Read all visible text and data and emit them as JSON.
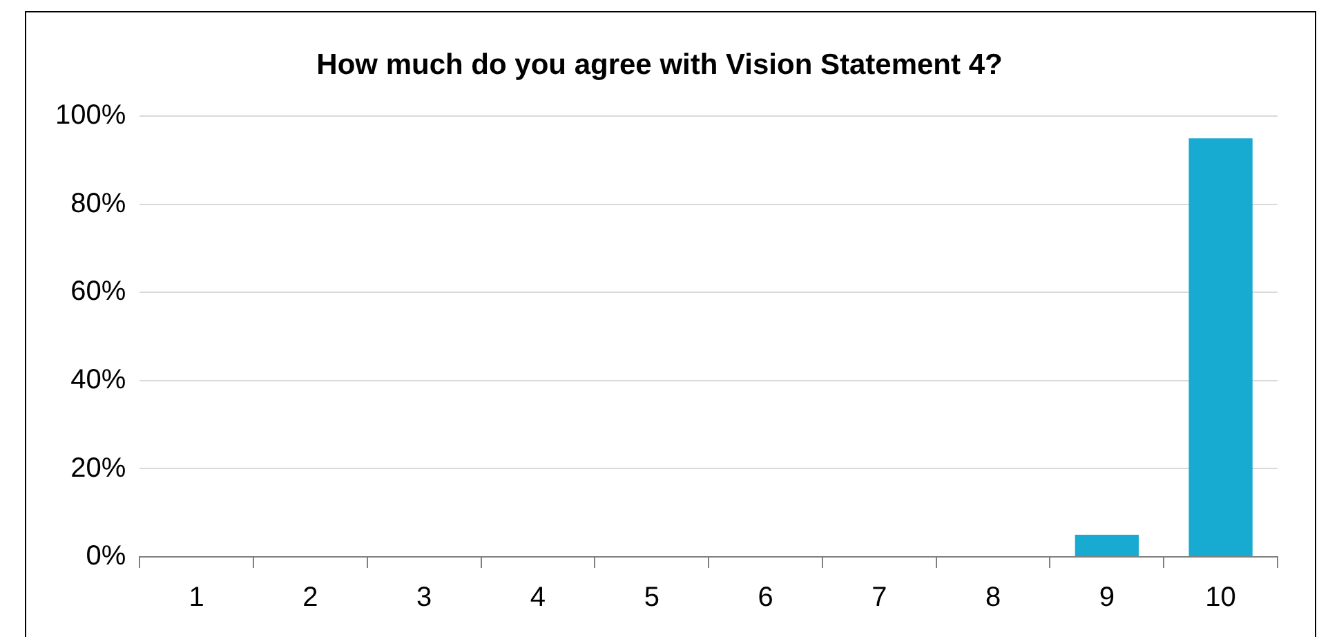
{
  "chart_data": {
    "type": "bar",
    "title": "How much do you agree with Vision Statement 4?",
    "categories": [
      "1",
      "2",
      "3",
      "4",
      "5",
      "6",
      "7",
      "8",
      "9",
      "10"
    ],
    "values": [
      0,
      0,
      0,
      0,
      0,
      0,
      0,
      0,
      5,
      95
    ],
    "color": "#17abd2",
    "ylim": [
      0,
      100
    ],
    "yticks": [
      {
        "value": 0,
        "label": "0%"
      },
      {
        "value": 20,
        "label": "20%"
      },
      {
        "value": 40,
        "label": "40%"
      },
      {
        "value": 60,
        "label": "60%"
      },
      {
        "value": 80,
        "label": "80%"
      },
      {
        "value": 100,
        "label": "100%"
      }
    ],
    "grid": "y",
    "legend": false
  }
}
